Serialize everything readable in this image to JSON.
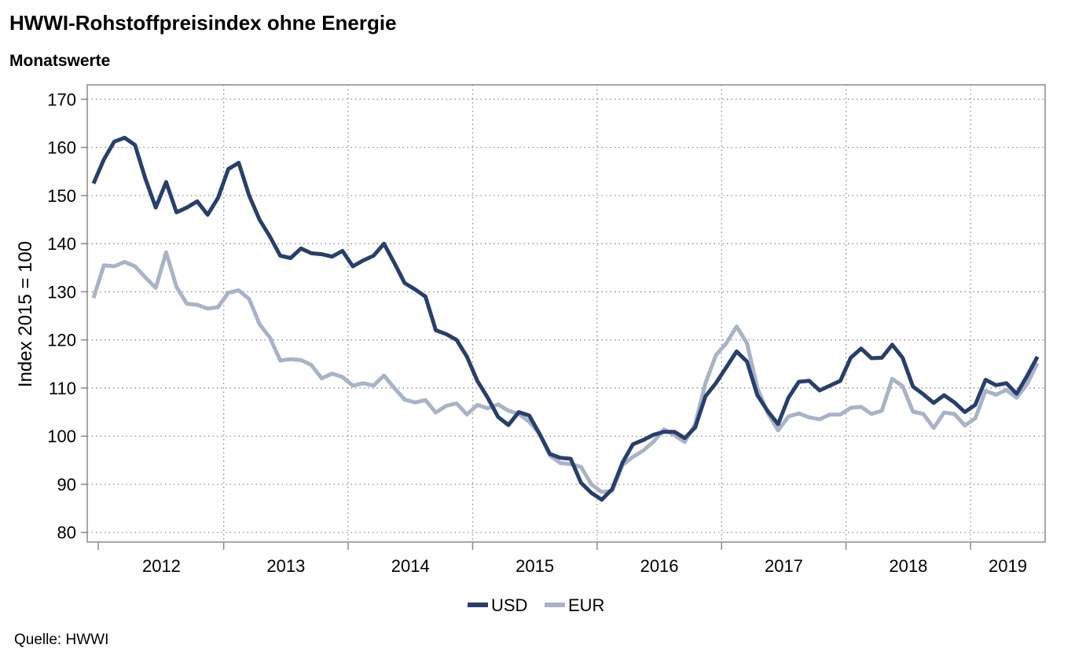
{
  "header": {
    "title": "HWWI-Rohstoffpreisindex ohne Energie",
    "subtitle": "Monatswerte"
  },
  "footer": {
    "source": "Quelle: HWWI"
  },
  "chart_data": {
    "type": "line",
    "ylabel": "Index 2015 = 100",
    "ylim": [
      78,
      173
    ],
    "yticks": [
      80,
      90,
      100,
      110,
      120,
      130,
      140,
      150,
      160,
      170
    ],
    "x_start": "2011-12",
    "x_axis_years": [
      "2012",
      "2013",
      "2014",
      "2015",
      "2016",
      "2017",
      "2018",
      "2019"
    ],
    "grid": true,
    "legend_position": "bottom-center",
    "colors": {
      "USD": "#283f6c",
      "EUR": "#a8b3c8"
    },
    "series": [
      {
        "name": "USD",
        "values": [
          152.5,
          157.5,
          161.2,
          162.0,
          160.5,
          153.5,
          147.5,
          152.8,
          146.5,
          147.5,
          148.8,
          146.0,
          149.5,
          155.5,
          156.8,
          150.0,
          145.0,
          141.5,
          137.5,
          137.0,
          139.0,
          138.0,
          137.8,
          137.3,
          138.5,
          135.3,
          136.5,
          137.5,
          140.0,
          136.0,
          131.8,
          130.5,
          129.0,
          122.0,
          121.2,
          120.0,
          116.5,
          111.5,
          108.0,
          104.0,
          102.3,
          105.0,
          104.3,
          100.5,
          96.3,
          95.5,
          95.3,
          90.3,
          88.2,
          86.8,
          89.0,
          94.5,
          98.3,
          99.2,
          100.3,
          100.9,
          100.9,
          99.6,
          101.8,
          108.3,
          111.0,
          114.3,
          117.6,
          115.5,
          108.5,
          105.2,
          102.5,
          108.0,
          111.3,
          111.5,
          109.5,
          110.5,
          111.5,
          116.3,
          118.2,
          116.2,
          116.3,
          119.0,
          116.3,
          110.3,
          108.7,
          106.9,
          108.5,
          107.0,
          105.0,
          106.5,
          111.7,
          110.6,
          111.0,
          108.8,
          112.5,
          116.5
        ]
      },
      {
        "name": "EUR",
        "values": [
          128.7,
          135.5,
          135.3,
          136.2,
          135.3,
          133.0,
          130.8,
          138.2,
          131.0,
          127.5,
          127.3,
          126.5,
          126.8,
          129.8,
          130.3,
          128.5,
          123.3,
          120.5,
          115.7,
          116.0,
          115.8,
          114.8,
          112.0,
          113.0,
          112.3,
          110.5,
          111.0,
          110.5,
          112.6,
          110.0,
          107.6,
          107.0,
          107.5,
          104.9,
          106.3,
          106.8,
          104.5,
          106.5,
          105.8,
          106.6,
          105.3,
          104.6,
          103.0,
          100.5,
          96.0,
          94.4,
          94.2,
          93.6,
          90.0,
          88.4,
          88.6,
          94.0,
          95.7,
          97.0,
          98.9,
          101.4,
          100.2,
          98.8,
          102.5,
          111.0,
          116.8,
          119.3,
          122.8,
          119.3,
          110.0,
          104.8,
          101.2,
          104.1,
          104.7,
          103.9,
          103.5,
          104.5,
          104.5,
          105.9,
          106.1,
          104.6,
          105.3,
          111.9,
          110.4,
          105.1,
          104.6,
          101.7,
          104.9,
          104.6,
          102.2,
          103.7,
          109.4,
          108.6,
          109.6,
          108.0,
          110.8,
          115.2
        ]
      }
    ]
  }
}
